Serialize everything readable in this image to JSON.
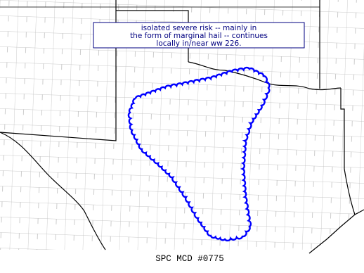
{
  "annotation": {
    "lines": [
      "isolated severe risk -- mainly in",
      "the form of marginal hail -- continues",
      "locally in/near ww 226."
    ]
  },
  "footer": "SPC MCD #0775"
}
